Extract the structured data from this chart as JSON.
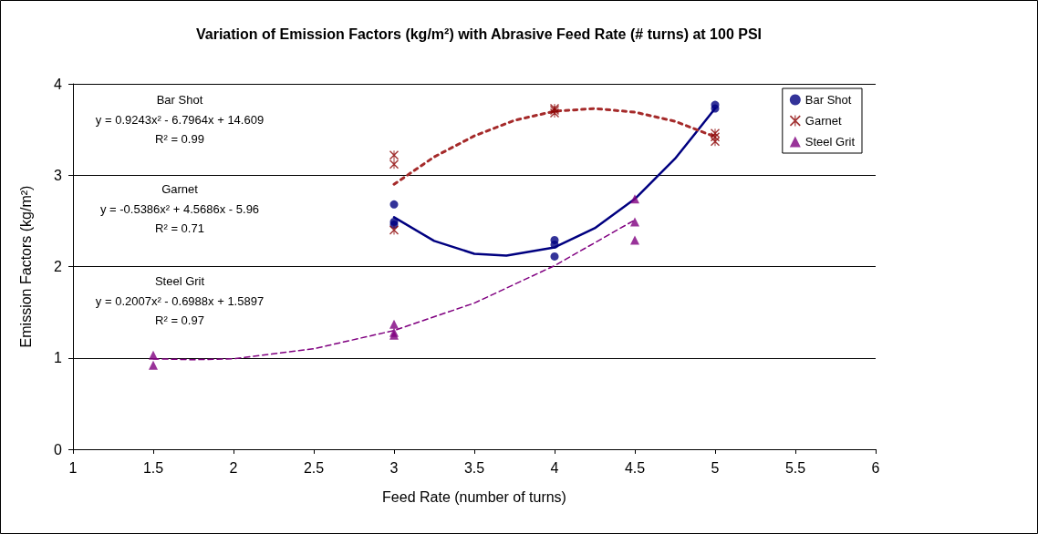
{
  "chart_data": {
    "type": "scatter",
    "title": "Variation of Emission Factors (kg/m²) with Abrasive Feed Rate (# turns) at 100 PSI",
    "xlabel": "Feed Rate (number of turns)",
    "ylabel": "Emission Factors (kg/m²)",
    "xlim": [
      1,
      6
    ],
    "xticks": [
      1,
      1.5,
      2,
      2.5,
      3,
      3.5,
      4,
      4.5,
      5,
      5.5,
      6
    ],
    "ylim": [
      0,
      4
    ],
    "yticks": [
      0,
      1,
      2,
      3,
      4
    ],
    "grid": "y",
    "legend": "top right",
    "annotations": [
      "Bar Shot",
      "y = 0.9243x² - 6.7964x + 14.609",
      "R² = 0.99",
      "Garnet",
      "y = -0.5386x² + 4.5686x - 5.96",
      "R² = 0.71",
      "Steel Grit",
      "y = 0.2007x² - 0.6988x + 1.5897",
      "R² = 0.97"
    ],
    "series": [
      {
        "name": "Bar Shot",
        "type": "scatter",
        "marker": "circle",
        "color": "#000080",
        "x": [
          3,
          3,
          3,
          4,
          4,
          4,
          5,
          5
        ],
        "values": [
          2.68,
          2.49,
          2.46,
          2.29,
          2.24,
          2.11,
          3.77,
          3.73
        ]
      },
      {
        "name": "Garnet",
        "type": "scatter",
        "marker": "cross",
        "color": "#8b0000",
        "x": [
          3,
          3,
          3,
          4,
          4,
          4,
          5,
          5,
          5
        ],
        "values": [
          3.22,
          3.12,
          2.4,
          3.73,
          3.71,
          3.68,
          3.46,
          3.42,
          3.37
        ]
      },
      {
        "name": "Steel Grit",
        "type": "scatter",
        "marker": "triangle",
        "color": "#800080",
        "x": [
          1.5,
          1.5,
          3,
          3,
          3,
          4.5,
          4.5,
          4.5
        ],
        "values": [
          1.03,
          0.92,
          1.37,
          1.28,
          1.25,
          2.74,
          2.49,
          2.29
        ]
      },
      {
        "type": "line",
        "marker": "none",
        "line_style": "solid",
        "color": "#000080",
        "x": [
          3,
          3.25,
          3.5,
          3.7,
          4,
          4.25,
          4.5,
          4.75,
          5
        ],
        "values": [
          2.54,
          2.28,
          2.14,
          2.12,
          2.21,
          2.42,
          2.74,
          3.18,
          3.73
        ]
      },
      {
        "type": "line",
        "marker": "none",
        "line_style": "dotted",
        "color": "#a52a2a",
        "x": [
          3,
          3.25,
          3.5,
          3.75,
          4,
          4.25,
          4.5,
          4.75,
          5
        ],
        "values": [
          2.9,
          3.2,
          3.43,
          3.6,
          3.7,
          3.73,
          3.69,
          3.59,
          3.42
        ]
      },
      {
        "type": "line",
        "marker": "none",
        "line_style": "dashed",
        "color": "#800080",
        "x": [
          1.5,
          1.75,
          2,
          2.5,
          3,
          3.5,
          4,
          4.5
        ],
        "values": [
          0.99,
          0.98,
          0.99,
          1.1,
          1.3,
          1.6,
          2.01,
          2.51
        ]
      }
    ]
  }
}
